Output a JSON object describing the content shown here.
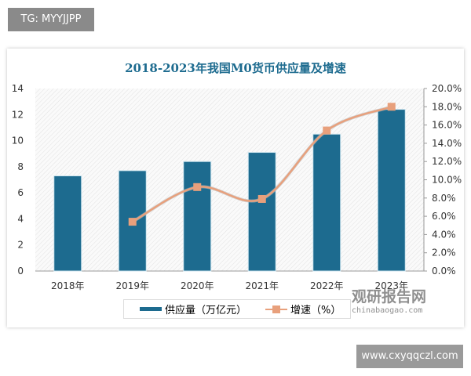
{
  "watermarks": {
    "top_left": "TG: MYYJJPP",
    "bottom_right": "www.cxyqqczl.com",
    "logo_cn": "观研报告网",
    "logo_en": "chinabaogao.com"
  },
  "colors": {
    "bar": "#1d6b8f",
    "line": "#e8a07c",
    "title": "#1d6b8f"
  },
  "chart_data": {
    "type": "bar+line",
    "title": "2018-2023年我国M0货币供应量及增速",
    "categories": [
      "2018年",
      "2019年",
      "2020年",
      "2021年",
      "2022年",
      "2023年"
    ],
    "series": [
      {
        "name": "供应量（万亿元）",
        "type": "bar",
        "axis": "left",
        "values": [
          7.3,
          7.7,
          8.4,
          9.1,
          10.5,
          12.4
        ]
      },
      {
        "name": "增速（%）",
        "type": "line",
        "axis": "right",
        "values": [
          null,
          5.4,
          9.2,
          7.9,
          15.4,
          18.0
        ]
      }
    ],
    "y_left": {
      "range": [
        0,
        14
      ],
      "ticks": [
        "0",
        "2",
        "4",
        "6",
        "8",
        "10",
        "12",
        "14"
      ]
    },
    "y_right": {
      "range": [
        0,
        20
      ],
      "ticks": [
        "0.0%",
        "2.0%",
        "4.0%",
        "6.0%",
        "8.0%",
        "10.0%",
        "12.0%",
        "14.0%",
        "16.0%",
        "18.0%",
        "20.0%"
      ]
    },
    "legend": "bottom",
    "grid": false
  }
}
